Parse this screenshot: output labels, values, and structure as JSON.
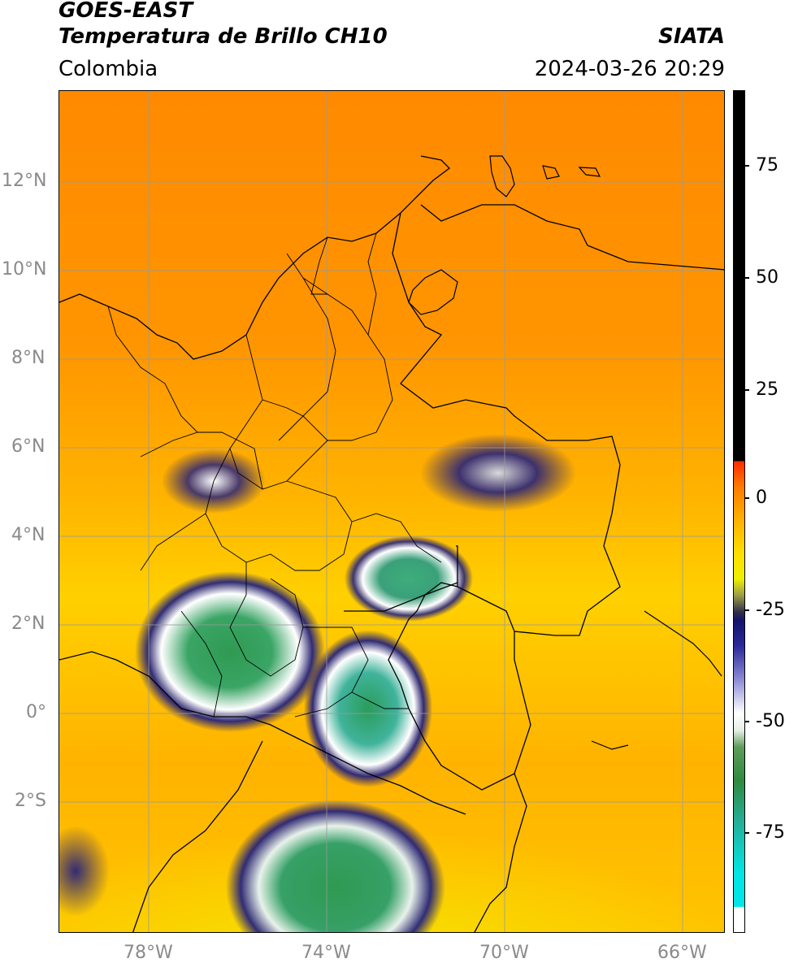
{
  "header": {
    "title_line1": "GOES-EAST",
    "title_line2": "Temperatura de Brillo CH10",
    "organization": "SIATA",
    "region": "Colombia",
    "datetime": "2024-03-26 20:29"
  },
  "axes": {
    "lat_labels": [
      "12°N",
      "10°N",
      "8°N",
      "6°N",
      "4°N",
      "2°N",
      "0°",
      "2°S"
    ],
    "lon_labels": [
      "78°W",
      "74°W",
      "70°W",
      "66°W"
    ]
  },
  "colorbar": {
    "labels": [
      "75",
      "50",
      "25",
      "0",
      "-25",
      "-50",
      "-75"
    ],
    "colors": {
      "black": "#000000",
      "red": "#ff2a00",
      "orange": "#ff8a00",
      "yellow": "#ffdf00",
      "navy": "#14146e",
      "white": "#ffffff",
      "green": "#2f8a40",
      "teal": "#24b09a",
      "cyan": "#00e6e6"
    }
  }
}
